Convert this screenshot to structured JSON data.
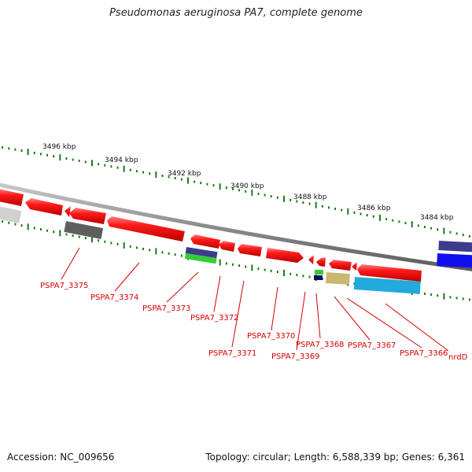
{
  "title": "Pseudomonas aeruginosa PA7, complete genome",
  "footer": {
    "accession": "Accession: NC_009656",
    "topology": "Topology: circular; Length: 6,588,339 bp; Genes: 6,361"
  },
  "scale": {
    "labels": [
      "3496 kbp",
      "3494 kbp",
      "3492 kbp",
      "3490 kbp",
      "3488 kbp",
      "3486 kbp",
      "3484 kbp"
    ]
  },
  "genes": [
    {
      "label": "PSPA7_3375"
    },
    {
      "label": "PSPA7_3374"
    },
    {
      "label": "PSPA7_3373"
    },
    {
      "label": "PSPA7_3372"
    },
    {
      "label": "PSPA7_3371"
    },
    {
      "label": "PSPA7_3370"
    },
    {
      "label": "PSPA7_3369"
    },
    {
      "label": "PSPA7_3368"
    },
    {
      "label": "PSPA7_3367"
    },
    {
      "label": "PSPA7_3366"
    },
    {
      "label": "nrdD"
    }
  ],
  "colors": {
    "gene": "#ee1111",
    "backbone": "#8c8c8c",
    "tick": "#1a7a1a",
    "label": "#d40000",
    "feature_gray": "#5e5e5e",
    "feature_navy": "#3c3c8c",
    "feature_green": "#33cc33",
    "feature_olive": "#c8b870",
    "feature_cyan": "#22aadd",
    "feature_blue": "#1010ee"
  }
}
